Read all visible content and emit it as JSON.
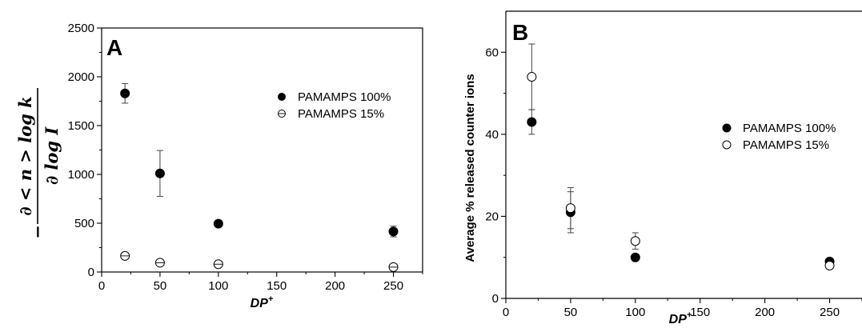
{
  "chart_data": [
    {
      "type": "scatter",
      "panel_label": "A",
      "xlabel": "DP",
      "xlabel_sup": "+",
      "ylabel_numerator": "∂ < n > log k",
      "ylabel_denominator": "∂ log I",
      "ylabel_prefix": "−",
      "xlim": [
        0,
        275
      ],
      "ylim": [
        0,
        2500
      ],
      "x_ticks": [
        0,
        50,
        100,
        150,
        200,
        250
      ],
      "y_ticks": [
        0,
        500,
        1000,
        1500,
        2000,
        2500
      ],
      "legend_position": "right",
      "series": [
        {
          "name": "PAMAMPS 100%",
          "marker": "filled-circle",
          "points": [
            {
              "x": 20,
              "y": 1830,
              "err": 100
            },
            {
              "x": 50,
              "y": 1010,
              "err": 235
            },
            {
              "x": 100,
              "y": 495,
              "err": 20
            },
            {
              "x": 250,
              "y": 415,
              "err": 55
            }
          ]
        },
        {
          "name": "PAMAMPS 15%",
          "marker": "open-circle-cross",
          "points": [
            {
              "x": 20,
              "y": 165,
              "err": 20
            },
            {
              "x": 50,
              "y": 95,
              "err": 15
            },
            {
              "x": 100,
              "y": 80,
              "err": 15
            },
            {
              "x": 250,
              "y": 50,
              "err": 12
            }
          ]
        }
      ]
    },
    {
      "type": "scatter",
      "panel_label": "B",
      "xlabel": "DP",
      "xlabel_sup": "+",
      "ylabel": "Average % released counter ions",
      "xlim": [
        0,
        275
      ],
      "ylim": [
        0,
        70
      ],
      "x_ticks": [
        0,
        50,
        100,
        150,
        200,
        250
      ],
      "y_ticks": [
        0,
        20,
        40,
        60
      ],
      "legend_position": "right",
      "series": [
        {
          "name": "PAMAMPS 100%",
          "marker": "filled-circle",
          "points": [
            {
              "x": 20,
              "y": 43,
              "err": 3
            },
            {
              "x": 50,
              "y": 21,
              "err": 5
            },
            {
              "x": 100,
              "y": 10,
              "err": 0.5
            },
            {
              "x": 250,
              "y": 9,
              "err": 0.5
            }
          ]
        },
        {
          "name": "PAMAMPS 15%",
          "marker": "open-circle",
          "points": [
            {
              "x": 20,
              "y": 54,
              "err": 8
            },
            {
              "x": 50,
              "y": 22,
              "err": 5
            },
            {
              "x": 100,
              "y": 14,
              "err": 2
            },
            {
              "x": 250,
              "y": 8,
              "err": 0.8
            }
          ]
        }
      ]
    }
  ]
}
